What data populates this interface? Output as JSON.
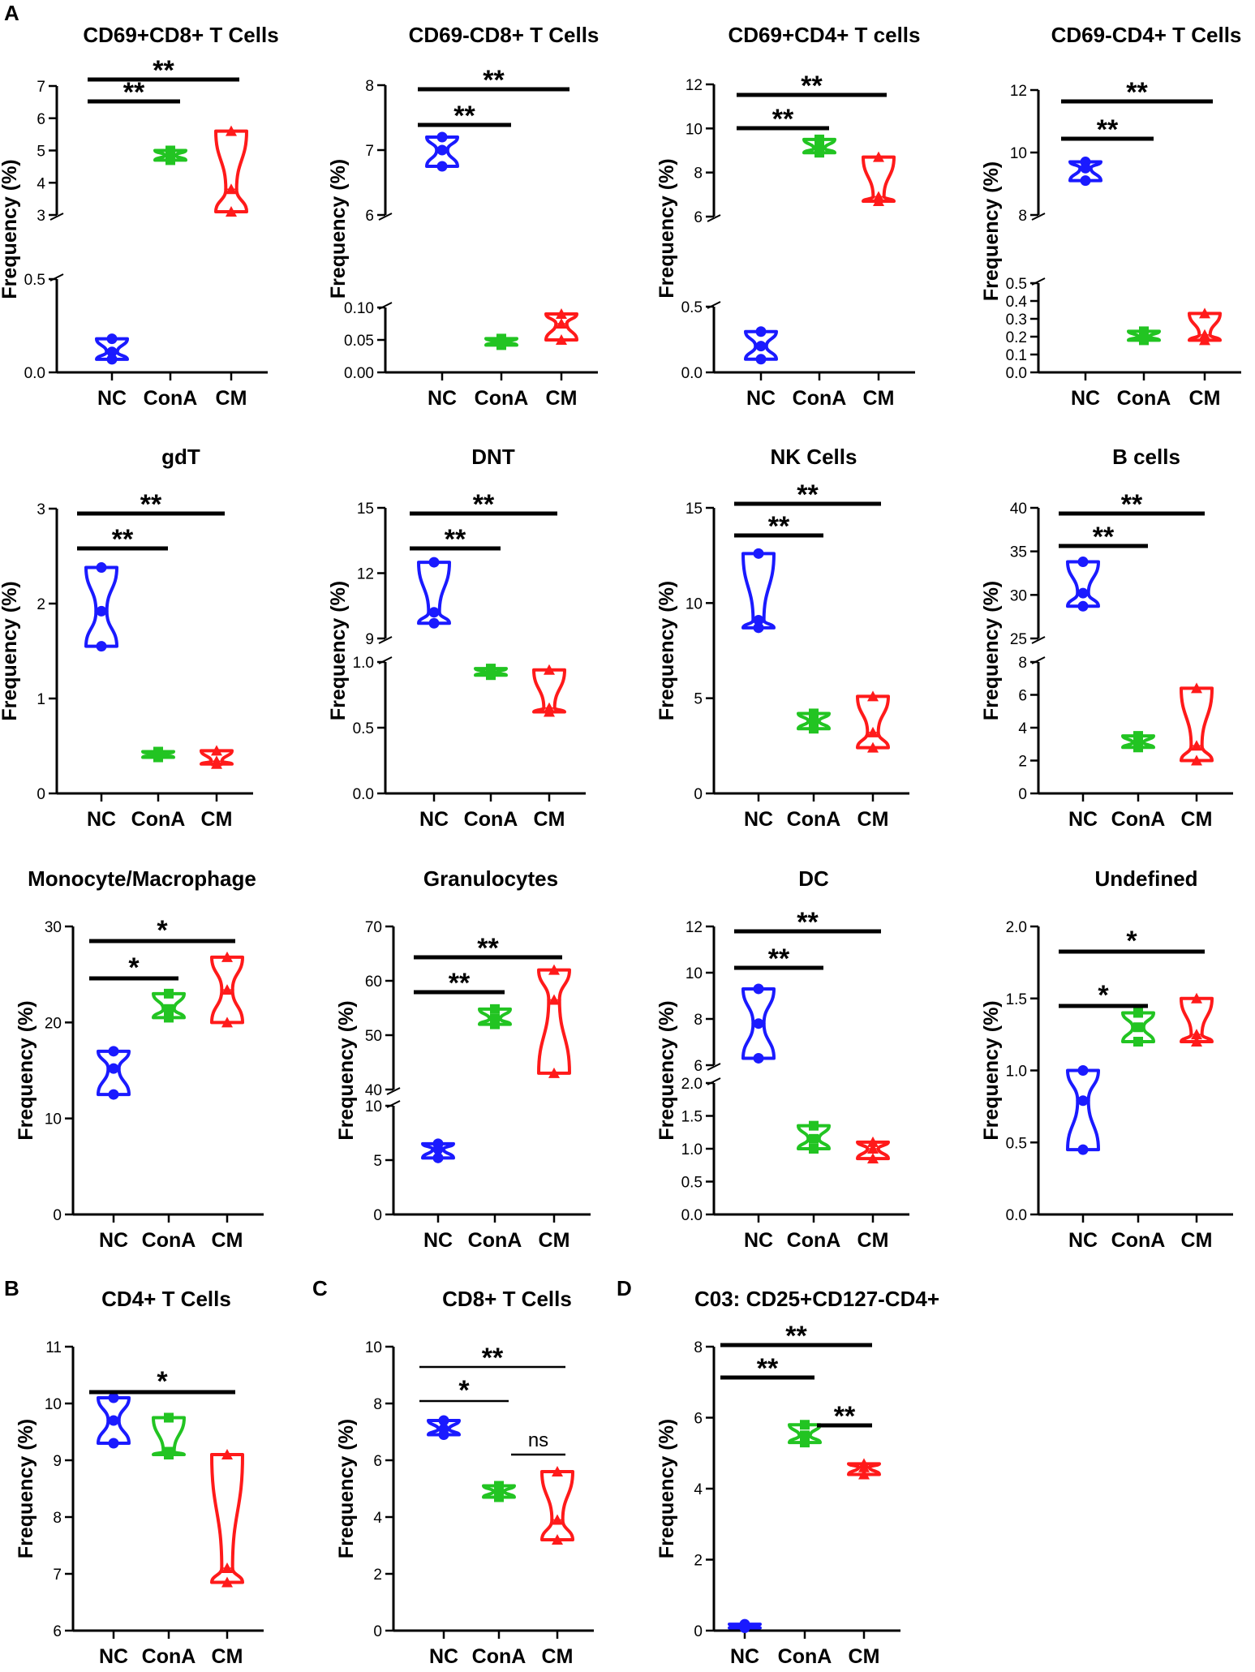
{
  "figure": {
    "panel_labels": [
      "A",
      "B",
      "C",
      "D"
    ],
    "colors": {
      "NC": "#1a1aff",
      "ConA": "#22c422",
      "CM": "#ff1a1a"
    },
    "ylabel": "Frequency (%)",
    "categories": [
      "NC",
      "ConA",
      "CM"
    ]
  },
  "chart_data": [
    {
      "type": "violin",
      "title": "CD69+CD8+ T Cells",
      "ylabel": "Frequency (%)",
      "categories": [
        "NC",
        "ConA",
        "CM"
      ],
      "segments": [
        {
          "range": [
            0,
            0.5
          ],
          "ticks": [
            "0.0",
            "0.5"
          ]
        },
        {
          "range": [
            3,
            7
          ],
          "ticks": [
            "3",
            "4",
            "5",
            "6",
            "7"
          ]
        }
      ],
      "series": [
        {
          "name": "NC",
          "min": 0.07,
          "median": 0.11,
          "max": 0.18
        },
        {
          "name": "ConA",
          "min": 4.7,
          "median": 4.85,
          "max": 5.0
        },
        {
          "name": "CM",
          "min": 3.1,
          "median": 3.8,
          "max": 5.6
        }
      ],
      "significance": [
        {
          "from": "NC",
          "to": "ConA",
          "label": "**"
        },
        {
          "from": "NC",
          "to": "CM",
          "label": "**"
        }
      ]
    },
    {
      "type": "violin",
      "title": "CD69-CD8+ T Cells",
      "ylabel": "Frequency (%)",
      "categories": [
        "NC",
        "ConA",
        "CM"
      ],
      "segments": [
        {
          "range": [
            0,
            0.1
          ],
          "ticks": [
            "0.00",
            "0.05",
            "0.10"
          ]
        },
        {
          "range": [
            6,
            8
          ],
          "ticks": [
            "6",
            "7",
            "8"
          ]
        }
      ],
      "series": [
        {
          "name": "NC",
          "min": 6.75,
          "median": 7.0,
          "max": 7.2
        },
        {
          "name": "ConA",
          "min": 0.042,
          "median": 0.047,
          "max": 0.052
        },
        {
          "name": "CM",
          "min": 0.05,
          "median": 0.075,
          "max": 0.09
        }
      ],
      "significance": [
        {
          "from": "NC",
          "to": "ConA",
          "label": "**"
        },
        {
          "from": "NC",
          "to": "CM",
          "label": "**"
        }
      ]
    },
    {
      "type": "violin",
      "title": "CD69+CD4+ T cells",
      "ylabel": "Frequency (%)",
      "categories": [
        "NC",
        "ConA",
        "CM"
      ],
      "segments": [
        {
          "range": [
            0,
            0.5
          ],
          "ticks": [
            "0.0",
            "0.5"
          ]
        },
        {
          "range": [
            6,
            12
          ],
          "ticks": [
            "6",
            "8",
            "10",
            "12"
          ]
        }
      ],
      "series": [
        {
          "name": "NC",
          "min": 0.1,
          "median": 0.2,
          "max": 0.31
        },
        {
          "name": "ConA",
          "min": 8.9,
          "median": 9.1,
          "max": 9.5
        },
        {
          "name": "CM",
          "min": 6.7,
          "median": 6.9,
          "max": 8.7
        }
      ],
      "significance": [
        {
          "from": "NC",
          "to": "ConA",
          "label": "**"
        },
        {
          "from": "NC",
          "to": "CM",
          "label": "**"
        }
      ]
    },
    {
      "type": "violin",
      "title": "CD69-CD4+ T Cells",
      "ylabel": "Frequency (%)",
      "categories": [
        "NC",
        "ConA",
        "CM"
      ],
      "segments": [
        {
          "range": [
            0,
            0.5
          ],
          "ticks": [
            "0.0",
            "0.1",
            "0.2",
            "0.3",
            "0.4",
            "0.5"
          ]
        },
        {
          "range": [
            8,
            12
          ],
          "ticks": [
            "8",
            "10",
            "12"
          ]
        }
      ],
      "series": [
        {
          "name": "NC",
          "min": 9.1,
          "median": 9.5,
          "max": 9.7
        },
        {
          "name": "ConA",
          "min": 0.18,
          "median": 0.2,
          "max": 0.23
        },
        {
          "name": "CM",
          "min": 0.18,
          "median": 0.21,
          "max": 0.33
        }
      ],
      "significance": [
        {
          "from": "NC",
          "to": "ConA",
          "label": "**"
        },
        {
          "from": "NC",
          "to": "CM",
          "label": "**"
        }
      ]
    },
    {
      "type": "violin",
      "title": "gdT",
      "ylabel": "Frequency (%)",
      "categories": [
        "NC",
        "ConA",
        "CM"
      ],
      "segments": [
        {
          "range": [
            0,
            3
          ],
          "ticks": [
            "0",
            "1",
            "2",
            "3"
          ]
        }
      ],
      "series": [
        {
          "name": "NC",
          "min": 1.55,
          "median": 1.92,
          "max": 2.38
        },
        {
          "name": "ConA",
          "min": 0.38,
          "median": 0.41,
          "max": 0.44
        },
        {
          "name": "CM",
          "min": 0.31,
          "median": 0.34,
          "max": 0.45
        }
      ],
      "significance": [
        {
          "from": "NC",
          "to": "ConA",
          "label": "**"
        },
        {
          "from": "NC",
          "to": "CM",
          "label": "**"
        }
      ]
    },
    {
      "type": "violin",
      "title": "DNT",
      "ylabel": "Frequency (%)",
      "categories": [
        "NC",
        "ConA",
        "CM"
      ],
      "segments": [
        {
          "range": [
            0,
            1
          ],
          "ticks": [
            "0.0",
            "0.5",
            "1.0"
          ]
        },
        {
          "range": [
            9,
            15
          ],
          "ticks": [
            "9",
            "12",
            "15"
          ]
        }
      ],
      "series": [
        {
          "name": "NC",
          "min": 9.7,
          "median": 10.2,
          "max": 12.5
        },
        {
          "name": "ConA",
          "min": 0.9,
          "median": 0.92,
          "max": 0.95
        },
        {
          "name": "CM",
          "min": 0.62,
          "median": 0.65,
          "max": 0.94
        }
      ],
      "significance": [
        {
          "from": "NC",
          "to": "ConA",
          "label": "**"
        },
        {
          "from": "NC",
          "to": "CM",
          "label": "**"
        }
      ]
    },
    {
      "type": "violin",
      "title": "NK Cells",
      "ylabel": "Frequency (%)",
      "categories": [
        "NC",
        "ConA",
        "CM"
      ],
      "segments": [
        {
          "range": [
            0,
            15
          ],
          "ticks": [
            "0",
            "5",
            "10",
            "15"
          ]
        }
      ],
      "series": [
        {
          "name": "NC",
          "min": 8.7,
          "median": 9.1,
          "max": 12.6
        },
        {
          "name": "ConA",
          "min": 3.4,
          "median": 3.8,
          "max": 4.2
        },
        {
          "name": "CM",
          "min": 2.4,
          "median": 3.2,
          "max": 5.1
        }
      ],
      "significance": [
        {
          "from": "NC",
          "to": "ConA",
          "label": "**"
        },
        {
          "from": "NC",
          "to": "CM",
          "label": "**"
        }
      ]
    },
    {
      "type": "violin",
      "title": "B cells",
      "ylabel": "Frequency (%)",
      "categories": [
        "NC",
        "ConA",
        "CM"
      ],
      "segments": [
        {
          "range": [
            0,
            8
          ],
          "ticks": [
            "0",
            "2",
            "4",
            "6",
            "8"
          ]
        },
        {
          "range": [
            25,
            40
          ],
          "ticks": [
            "25",
            "30",
            "35",
            "40"
          ]
        }
      ],
      "series": [
        {
          "name": "NC",
          "min": 28.7,
          "median": 30.2,
          "max": 33.8
        },
        {
          "name": "ConA",
          "min": 2.8,
          "median": 3.1,
          "max": 3.5
        },
        {
          "name": "CM",
          "min": 2.0,
          "median": 2.9,
          "max": 6.4
        }
      ],
      "significance": [
        {
          "from": "NC",
          "to": "ConA",
          "label": "**"
        },
        {
          "from": "NC",
          "to": "CM",
          "label": "**"
        }
      ]
    },
    {
      "type": "violin",
      "title": "Monocyte/Macrophage",
      "ylabel": "Frequency (%)",
      "categories": [
        "NC",
        "ConA",
        "CM"
      ],
      "segments": [
        {
          "range": [
            0,
            30
          ],
          "ticks": [
            "0",
            "10",
            "20",
            "30"
          ]
        }
      ],
      "series": [
        {
          "name": "NC",
          "min": 12.5,
          "median": 15.2,
          "max": 17.0
        },
        {
          "name": "ConA",
          "min": 20.5,
          "median": 21.4,
          "max": 23.0
        },
        {
          "name": "CM",
          "min": 20.0,
          "median": 23.4,
          "max": 26.8
        }
      ],
      "significance": [
        {
          "from": "NC",
          "to": "ConA",
          "label": "*"
        },
        {
          "from": "NC",
          "to": "CM",
          "label": "*"
        }
      ]
    },
    {
      "type": "violin",
      "title": "Granulocytes",
      "ylabel": "Frequency (%)",
      "categories": [
        "NC",
        "ConA",
        "CM"
      ],
      "segments": [
        {
          "range": [
            0,
            10
          ],
          "ticks": [
            "0",
            "5",
            "10"
          ]
        },
        {
          "range": [
            40,
            70
          ],
          "ticks": [
            "40",
            "50",
            "60",
            "70"
          ]
        }
      ],
      "series": [
        {
          "name": "NC",
          "min": 5.2,
          "median": 6.0,
          "max": 6.5
        },
        {
          "name": "ConA",
          "min": 52.0,
          "median": 53.0,
          "max": 54.8
        },
        {
          "name": "CM",
          "min": 43.0,
          "median": 56.5,
          "max": 62.0
        }
      ],
      "significance": [
        {
          "from": "NC",
          "to": "ConA",
          "label": "**"
        },
        {
          "from": "NC",
          "to": "CM",
          "label": "**"
        }
      ]
    },
    {
      "type": "violin",
      "title": "DC",
      "ylabel": "Frequency (%)",
      "categories": [
        "NC",
        "ConA",
        "CM"
      ],
      "segments": [
        {
          "range": [
            0,
            2
          ],
          "ticks": [
            "0.0",
            "0.5",
            "1.0",
            "1.5",
            "2.0"
          ]
        },
        {
          "range": [
            6,
            12
          ],
          "ticks": [
            "6",
            "8",
            "10",
            "12"
          ]
        }
      ],
      "series": [
        {
          "name": "NC",
          "min": 6.3,
          "median": 7.8,
          "max": 9.3
        },
        {
          "name": "ConA",
          "min": 1.0,
          "median": 1.15,
          "max": 1.35
        },
        {
          "name": "CM",
          "min": 0.85,
          "median": 1.0,
          "max": 1.1
        }
      ],
      "significance": [
        {
          "from": "NC",
          "to": "ConA",
          "label": "**"
        },
        {
          "from": "NC",
          "to": "CM",
          "label": "**"
        }
      ]
    },
    {
      "type": "violin",
      "title": "Undefined",
      "ylabel": "Frequency (%)",
      "categories": [
        "NC",
        "ConA",
        "CM"
      ],
      "segments": [
        {
          "range": [
            0,
            2
          ],
          "ticks": [
            "0.0",
            "0.5",
            "1.0",
            "1.5",
            "2.0"
          ]
        }
      ],
      "series": [
        {
          "name": "NC",
          "min": 0.45,
          "median": 0.79,
          "max": 1.0
        },
        {
          "name": "ConA",
          "min": 1.2,
          "median": 1.3,
          "max": 1.4
        },
        {
          "name": "CM",
          "min": 1.2,
          "median": 1.25,
          "max": 1.5
        }
      ],
      "significance": [
        {
          "from": "NC",
          "to": "ConA",
          "label": "*"
        },
        {
          "from": "NC",
          "to": "CM",
          "label": "*"
        }
      ]
    },
    {
      "type": "violin",
      "title": "CD4+ T Cells",
      "ylabel": "Frequency (%)",
      "categories": [
        "NC",
        "ConA",
        "CM"
      ],
      "segments": [
        {
          "range": [
            6,
            11
          ],
          "ticks": [
            "6",
            "7",
            "8",
            "9",
            "10",
            "11"
          ]
        }
      ],
      "series": [
        {
          "name": "NC",
          "min": 9.3,
          "median": 9.7,
          "max": 10.1
        },
        {
          "name": "ConA",
          "min": 9.1,
          "median": 9.15,
          "max": 9.75
        },
        {
          "name": "CM",
          "min": 6.85,
          "median": 7.1,
          "max": 9.1
        }
      ],
      "significance": [
        {
          "from": "NC",
          "to": "CM",
          "label": "*"
        }
      ]
    },
    {
      "type": "violin",
      "title": "CD8+ T Cells",
      "ylabel": "Frequency (%)",
      "categories": [
        "NC",
        "ConA",
        "CM"
      ],
      "segments": [
        {
          "range": [
            0,
            10
          ],
          "ticks": [
            "0",
            "2",
            "4",
            "6",
            "8",
            "10"
          ]
        }
      ],
      "series": [
        {
          "name": "NC",
          "min": 6.9,
          "median": 7.1,
          "max": 7.4
        },
        {
          "name": "ConA",
          "min": 4.7,
          "median": 4.9,
          "max": 5.1
        },
        {
          "name": "CM",
          "min": 3.2,
          "median": 3.9,
          "max": 5.6
        }
      ],
      "significance": [
        {
          "from": "NC",
          "to": "ConA",
          "label": "*"
        },
        {
          "from": "NC",
          "to": "CM",
          "label": "**"
        },
        {
          "from": "ConA",
          "to": "CM",
          "label": "ns"
        }
      ]
    },
    {
      "type": "violin",
      "title": "C03: CD25+CD127-CD4+",
      "ylabel": "Frequency (%)",
      "categories": [
        "NC",
        "ConA",
        "CM"
      ],
      "segments": [
        {
          "range": [
            0,
            8
          ],
          "ticks": [
            "0",
            "2",
            "4",
            "6",
            "8"
          ]
        }
      ],
      "series": [
        {
          "name": "NC",
          "min": 0.08,
          "median": 0.12,
          "max": 0.18
        },
        {
          "name": "ConA",
          "min": 5.3,
          "median": 5.5,
          "max": 5.8
        },
        {
          "name": "CM",
          "min": 4.4,
          "median": 4.6,
          "max": 4.7
        }
      ],
      "significance": [
        {
          "from": "NC",
          "to": "ConA",
          "label": "**"
        },
        {
          "from": "ConA",
          "to": "CM",
          "label": "**"
        },
        {
          "from": "NC",
          "to": "CM",
          "label": "**"
        }
      ]
    }
  ]
}
